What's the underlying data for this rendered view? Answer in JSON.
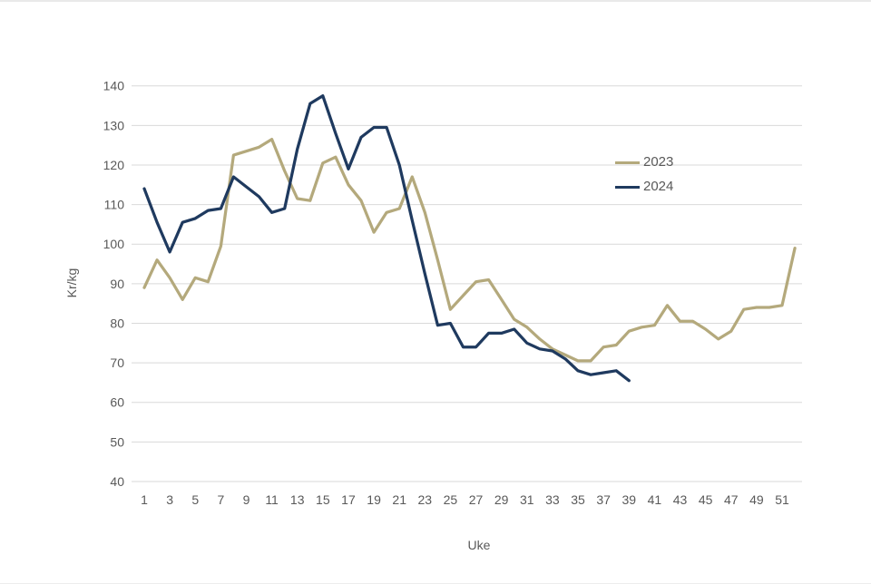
{
  "window": {
    "top_edge_color": "#e9e9e9",
    "bottom_edge_color": "#ededed"
  },
  "chart_data": {
    "type": "line",
    "title": "",
    "xlabel": "Uke",
    "ylabel": "Kr/kg",
    "x_ticks": [
      1,
      3,
      5,
      7,
      9,
      11,
      13,
      15,
      17,
      19,
      21,
      23,
      25,
      27,
      29,
      31,
      33,
      35,
      37,
      39,
      41,
      43,
      45,
      47,
      49,
      51
    ],
    "ylim": [
      40,
      140
    ],
    "y_tick_step": 10,
    "grid": true,
    "legend_position": "right-inside",
    "text_color": "#595959",
    "grid_color": "#d9d9d9",
    "series": [
      {
        "name": "2023",
        "color": "#b4a97c",
        "x_start": 1,
        "values": [
          89,
          96,
          91.5,
          86,
          91.5,
          90.5,
          99.5,
          122.5,
          123.5,
          124.5,
          126.5,
          118.5,
          111.5,
          111,
          120.5,
          122,
          115,
          111,
          103,
          108,
          109,
          117,
          108,
          96,
          83.5,
          87,
          90.5,
          91,
          86,
          81,
          79,
          76,
          73.5,
          72,
          70.5,
          70.5,
          74,
          74.5,
          78,
          79,
          79.5,
          84.5,
          80.5,
          80.5,
          78.5,
          76,
          78,
          83.5,
          84,
          84,
          84.5,
          99
        ]
      },
      {
        "name": "2024",
        "color": "#1f3a5f",
        "x_start": 1,
        "values": [
          114,
          105.5,
          98,
          105.5,
          106.5,
          108.5,
          109,
          117,
          114.5,
          112,
          108,
          109,
          124,
          135.5,
          137.5,
          128,
          119,
          127,
          129.5,
          129.5,
          120,
          106,
          92.5,
          79.5,
          80,
          74,
          74,
          77.5,
          77.5,
          78.5,
          75,
          73.5,
          73,
          71,
          68,
          67,
          67.5,
          68,
          65.5
        ]
      }
    ]
  },
  "legend": {
    "items": [
      {
        "label": "2023"
      },
      {
        "label": "2024"
      }
    ]
  }
}
